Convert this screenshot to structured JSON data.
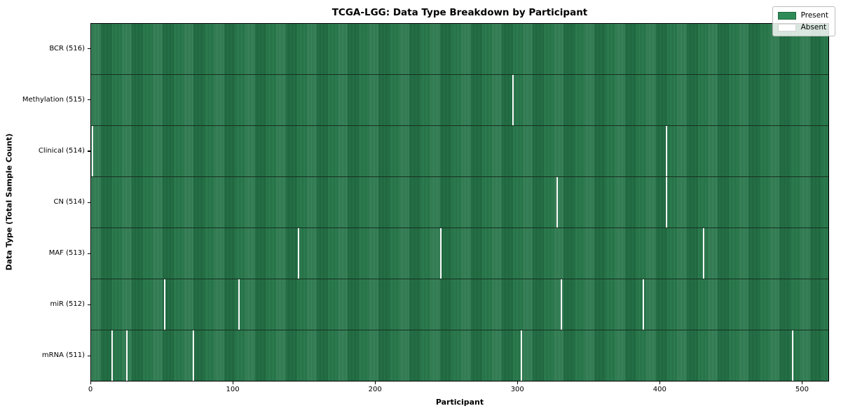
{
  "title": "TCGA-LGG: Data Type Breakdown by Participant",
  "xlabel": "Participant",
  "ylabel": "Data Type (Total Sample Count)",
  "colors": {
    "present": "#2e8b57",
    "absent": "#fafafa",
    "row_divider": "#17301f",
    "plot_border": "#000000"
  },
  "chart_data": {
    "type": "heatmap",
    "title": "TCGA-LGG: Data Type Breakdown by Participant",
    "xlabel": "Participant",
    "ylabel": "Data Type (Total Sample Count)",
    "x_ticks": [
      0,
      100,
      200,
      300,
      400,
      500
    ],
    "xlim": [
      0,
      519
    ],
    "n_participants": 516,
    "cell_states": [
      "Present",
      "Absent"
    ],
    "legend": [
      {
        "label": "Present",
        "color": "#2e8b57"
      },
      {
        "label": "Absent",
        "color": "#ffffff"
      }
    ],
    "legend_position": "upper right",
    "rows": [
      {
        "label": "BCR (516)",
        "data_type": "BCR",
        "present_count": 516,
        "absent_count": 0,
        "absent_participants": []
      },
      {
        "label": "Methylation (515)",
        "data_type": "Methylation",
        "present_count": 515,
        "absent_count": 1,
        "absent_participants": [
          297
        ]
      },
      {
        "label": "Clinical (514)",
        "data_type": "Clinical",
        "present_count": 514,
        "absent_count": 2,
        "absent_participants": [
          1,
          405
        ]
      },
      {
        "label": "CN (514)",
        "data_type": "CN",
        "present_count": 514,
        "absent_count": 2,
        "absent_participants": [
          328,
          405
        ]
      },
      {
        "label": "MAF (513)",
        "data_type": "MAF",
        "present_count": 513,
        "absent_count": 3,
        "absent_participants": [
          146,
          246,
          431
        ]
      },
      {
        "label": "miR (512)",
        "data_type": "miR",
        "present_count": 512,
        "absent_count": 4,
        "absent_participants": [
          52,
          104,
          331,
          389
        ]
      },
      {
        "label": "mRNA (511)",
        "data_type": "mRNA",
        "present_count": 511,
        "absent_count": 5,
        "absent_participants": [
          15,
          25,
          72,
          303,
          494
        ]
      }
    ]
  }
}
